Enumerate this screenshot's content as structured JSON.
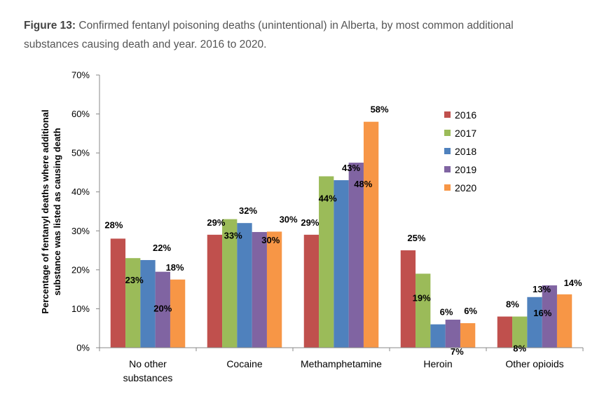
{
  "figure": {
    "label": "Figure 13:",
    "caption": " Confirmed fentanyl poisoning deaths (unintentional) in Alberta, by most common additional substances causing death and year. 2016 to 2020."
  },
  "chart_data": {
    "type": "bar",
    "categories": [
      [
        "No other",
        "substances"
      ],
      [
        "Cocaine"
      ],
      [
        "Methamphetamine"
      ],
      [
        "Heroin"
      ],
      [
        "Other opioids"
      ]
    ],
    "series": [
      {
        "name": "2016",
        "color": "#c0504d",
        "values": [
          28,
          29,
          29,
          25,
          8
        ],
        "labels": [
          "28%",
          "29%",
          "29%",
          "25%",
          "8%"
        ]
      },
      {
        "name": "2017",
        "color": "#9bbb59",
        "values": [
          23,
          33,
          44,
          19,
          8
        ],
        "labels": [
          "23%",
          "33%",
          "44%",
          "19%",
          "8%"
        ]
      },
      {
        "name": "2018",
        "color": "#4f81bd",
        "values": [
          22.5,
          32,
          43,
          6,
          13
        ],
        "labels": [
          "22%",
          "32%",
          "43%",
          "6%",
          "13%"
        ]
      },
      {
        "name": "2019",
        "color": "#8064a2",
        "values": [
          19.5,
          29.7,
          47.5,
          7.2,
          16
        ],
        "labels": [
          "20%",
          "30%",
          "48%",
          "7%",
          "16%"
        ]
      },
      {
        "name": "2020",
        "color": "#f79646",
        "values": [
          17.5,
          29.8,
          58,
          6.3,
          13.7
        ],
        "labels": [
          "18%",
          "30%",
          "58%",
          "6%",
          "14%"
        ]
      }
    ],
    "ylabel": [
      "Percentage of fentanyl deaths where additional",
      "substance was listed as causing death"
    ],
    "yticks": [
      "0%",
      "10%",
      "20%",
      "30%",
      "40%",
      "50%",
      "60%",
      "70%"
    ],
    "ylim": [
      0,
      70
    ],
    "legend_position": "top-right"
  }
}
